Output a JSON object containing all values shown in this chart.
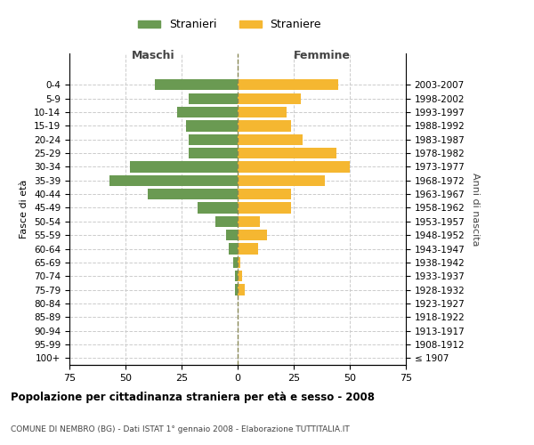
{
  "age_groups": [
    "100+",
    "95-99",
    "90-94",
    "85-89",
    "80-84",
    "75-79",
    "70-74",
    "65-69",
    "60-64",
    "55-59",
    "50-54",
    "45-49",
    "40-44",
    "35-39",
    "30-34",
    "25-29",
    "20-24",
    "15-19",
    "10-14",
    "5-9",
    "0-4"
  ],
  "birth_years": [
    "≤ 1907",
    "1908-1912",
    "1913-1917",
    "1918-1922",
    "1923-1927",
    "1928-1932",
    "1933-1937",
    "1938-1942",
    "1943-1947",
    "1948-1952",
    "1953-1957",
    "1958-1962",
    "1963-1967",
    "1968-1972",
    "1973-1977",
    "1978-1982",
    "1983-1987",
    "1988-1992",
    "1993-1997",
    "1998-2002",
    "2003-2007"
  ],
  "maschi": [
    0,
    0,
    0,
    0,
    0,
    1,
    1,
    2,
    4,
    5,
    10,
    18,
    40,
    57,
    48,
    22,
    22,
    23,
    27,
    22,
    37
  ],
  "femmine": [
    0,
    0,
    0,
    0,
    0,
    3,
    2,
    1,
    9,
    13,
    10,
    24,
    24,
    39,
    50,
    44,
    29,
    24,
    22,
    28,
    45
  ],
  "color_maschi": "#6a9a52",
  "color_femmine": "#f5b731",
  "xlim": 75,
  "title": "Popolazione per cittadinanza straniera per età e sesso - 2008",
  "subtitle": "COMUNE DI NEMBRO (BG) - Dati ISTAT 1° gennaio 2008 - Elaborazione TUTTITALIA.IT",
  "ylabel_left": "Fasce di età",
  "ylabel_right": "Anni di nascita",
  "label_maschi": "Stranieri",
  "label_femmine": "Straniere",
  "header_maschi": "Maschi",
  "header_femmine": "Femmine",
  "background_color": "#ffffff",
  "grid_color": "#cccccc"
}
